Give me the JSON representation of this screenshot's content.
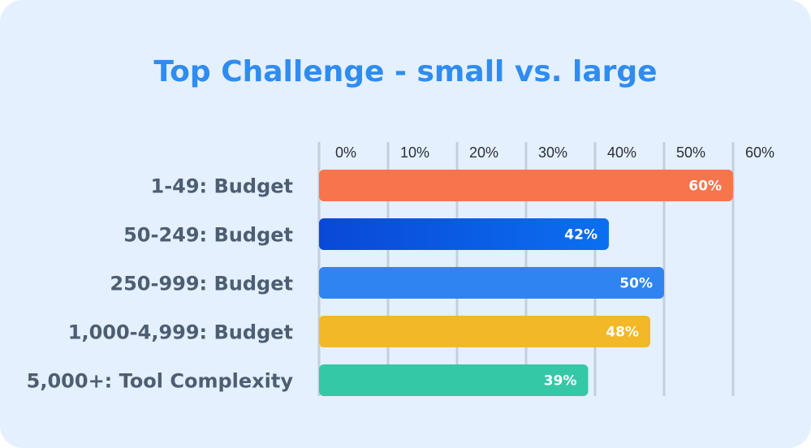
{
  "chart_data": {
    "type": "bar",
    "orientation": "horizontal",
    "title": "Top Challenge - small vs. large",
    "categories": [
      "1-49: Budget",
      "50-249: Budget",
      "250-999: Budget",
      "1,000-4,999: Budget",
      "5,000+: Tool Complexity"
    ],
    "values": [
      60,
      42,
      50,
      48,
      39
    ],
    "value_labels": [
      "60%",
      "42%",
      "50%",
      "48%",
      "39%"
    ],
    "colors": [
      "#f8744c",
      "#0a5ee6",
      "#2f84f2",
      "#f2b827",
      "#35c8a7"
    ],
    "x_ticks": [
      "0%",
      "10%",
      "20%",
      "30%",
      "40%",
      "50%",
      "60%"
    ],
    "xlim": [
      0,
      60
    ],
    "grid": true,
    "legend": "none"
  }
}
